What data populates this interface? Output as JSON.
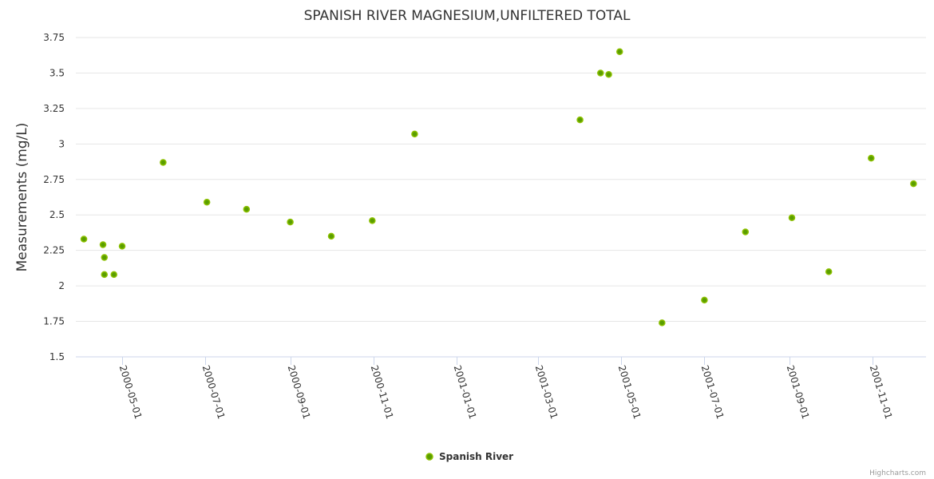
{
  "chart_data": {
    "type": "scatter",
    "title": "SPANISH RIVER MAGNESIUM,UNFILTERED TOTAL",
    "xlabel": "",
    "ylabel": "Measurements (mg/L)",
    "ylim": [
      1.5,
      3.75
    ],
    "yticks": [
      1.5,
      1.75,
      2,
      2.25,
      2.5,
      2.75,
      3,
      3.25,
      3.5,
      3.75
    ],
    "ytick_labels": [
      "1.5",
      "1.75",
      "2",
      "2.25",
      "2.5",
      "2.75",
      "3",
      "3.25",
      "3.5",
      "3.75"
    ],
    "xticks": [
      "2000-05-01",
      "2000-07-01",
      "2000-09-01",
      "2000-11-01",
      "2001-01-01",
      "2001-03-01",
      "2001-05-01",
      "2001-07-01",
      "2001-09-01",
      "2001-11-01"
    ],
    "xlim": [
      "2000-04-03",
      "2001-12-01"
    ],
    "grid": true,
    "legend_position": "bottom-center",
    "series": [
      {
        "name": "Spanish River",
        "color": "#5a9e00",
        "points": [
          [
            "2000-04-03",
            2.33
          ],
          [
            "2000-04-17",
            2.29
          ],
          [
            "2000-04-18",
            2.2
          ],
          [
            "2000-04-18",
            2.08
          ],
          [
            "2000-04-25",
            2.08
          ],
          [
            "2000-05-01",
            2.28
          ],
          [
            "2000-05-31",
            2.87
          ],
          [
            "2000-07-02",
            2.59
          ],
          [
            "2000-07-31",
            2.54
          ],
          [
            "2000-09-01",
            2.45
          ],
          [
            "2000-10-01",
            2.35
          ],
          [
            "2000-10-31",
            2.46
          ],
          [
            "2000-12-01",
            3.07
          ],
          [
            "2001-04-01",
            3.17
          ],
          [
            "2001-04-16",
            3.5
          ],
          [
            "2001-04-22",
            3.49
          ],
          [
            "2001-04-30",
            3.65
          ],
          [
            "2001-05-31",
            1.74
          ],
          [
            "2001-07-01",
            1.9
          ],
          [
            "2001-07-31",
            2.38
          ],
          [
            "2001-09-03",
            2.48
          ],
          [
            "2001-09-30",
            2.1
          ],
          [
            "2001-10-31",
            2.9
          ],
          [
            "2001-12-01",
            2.72
          ]
        ]
      }
    ]
  },
  "credits": "Highcharts.com"
}
